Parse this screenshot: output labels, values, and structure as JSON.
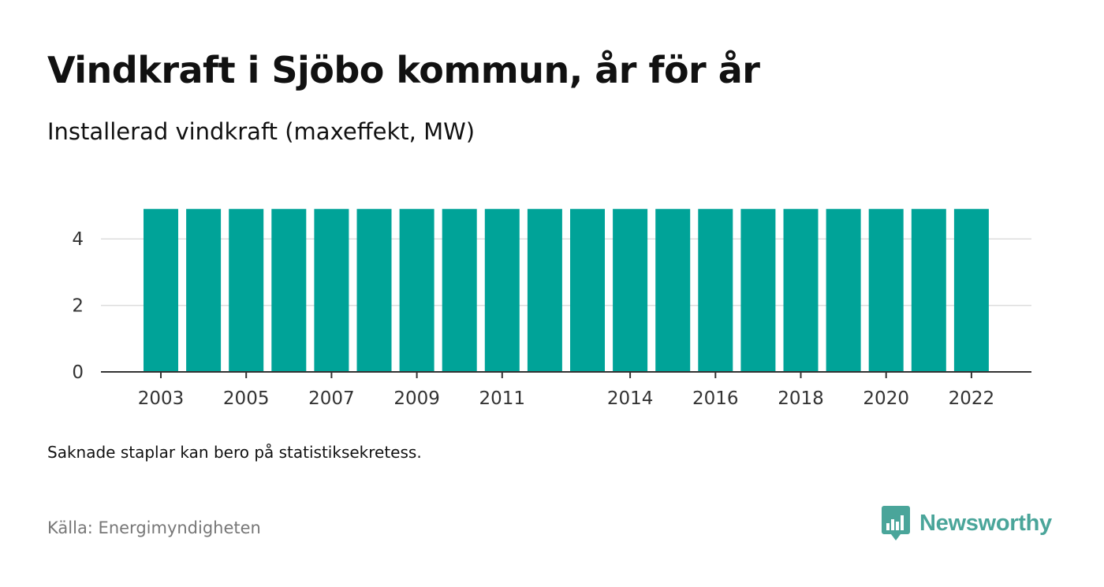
{
  "header": {
    "title": "Vindkraft i Sjöbo kommun, år för år",
    "subtitle": "Installerad vindkraft (maxeffekt, MW)"
  },
  "footer": {
    "note": "Saknade staplar kan bero på statistiksekretess.",
    "source": "Källa: Energimyndigheten",
    "brand": "Newsworthy"
  },
  "colors": {
    "bar": "#00a398",
    "grid": "#dddddd",
    "axis": "#333333",
    "brand": "#4aa59a"
  },
  "chart_data": {
    "type": "bar",
    "title": "Vindkraft i Sjöbo kommun, år för år",
    "subtitle": "Installerad vindkraft (maxeffekt, MW)",
    "xlabel": "",
    "ylabel": "",
    "categories": [
      "2003",
      "2004",
      "2005",
      "2006",
      "2007",
      "2008",
      "2009",
      "2010",
      "2011",
      "2012",
      "2013",
      "2014",
      "2015",
      "2016",
      "2017",
      "2018",
      "2019",
      "2020",
      "2021",
      "2022"
    ],
    "x_tick_labels": [
      "2003",
      "",
      "2005",
      "",
      "2007",
      "",
      "2009",
      "",
      "2011",
      "",
      "",
      "2014",
      "",
      "2016",
      "",
      "2018",
      "",
      "2020",
      "",
      "2022"
    ],
    "values": [
      4.9,
      4.9,
      4.9,
      4.9,
      4.9,
      4.9,
      4.9,
      4.9,
      4.9,
      4.9,
      4.9,
      4.9,
      4.9,
      4.9,
      4.9,
      4.9,
      4.9,
      4.9,
      4.9,
      4.9
    ],
    "y_ticks": [
      0,
      2,
      4
    ],
    "ylim": [
      0,
      5
    ],
    "grid": true,
    "legend": "none"
  }
}
